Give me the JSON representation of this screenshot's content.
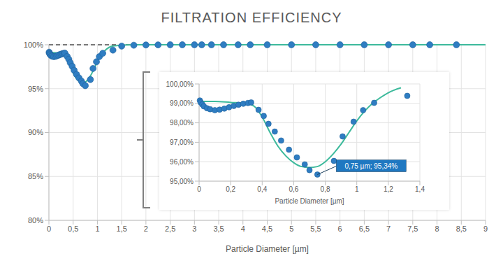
{
  "chart_data": [
    {
      "type": "scatter",
      "title": "FILTRATION EFFICIENCY",
      "x_label": "Particle Diameter [µm]",
      "xlim": [
        0,
        9
      ],
      "xticks": [
        0,
        {
          "value": 0.5,
          "label": "0,5"
        },
        1,
        {
          "value": 1.5,
          "label": "1,5"
        },
        2,
        {
          "value": 2.5,
          "label": "2,5"
        },
        3,
        {
          "value": 3.5,
          "label": "3,5"
        },
        4,
        {
          "value": 4.5,
          "label": "4,5"
        },
        5,
        {
          "value": 5.5,
          "label": "5,5"
        },
        6,
        {
          "value": 6.5,
          "label": "6,5"
        },
        7,
        {
          "value": 7.5,
          "label": "7,5"
        },
        8,
        {
          "value": 8.5,
          "label": "8,5"
        },
        9
      ],
      "ylim": [
        80,
        100
      ],
      "yticks": [
        {
          "value": 80,
          "label": "80%"
        },
        {
          "value": 85,
          "label": "85%"
        },
        {
          "value": 90,
          "label": "90%"
        },
        {
          "value": 95,
          "label": "95%"
        },
        {
          "value": 100,
          "label": "100%"
        }
      ],
      "grid": true,
      "reference_line": {
        "y": 100,
        "color": "#000000",
        "line_style": "dashed"
      },
      "series": [
        {
          "type": "line",
          "color": "#3dba9c",
          "line_style": "solid",
          "x": [
            0,
            0.1,
            0.2,
            0.3,
            0.35,
            0.4,
            0.45,
            0.5,
            0.55,
            0.6,
            0.65,
            0.7,
            0.75,
            0.8,
            0.85,
            0.9,
            0.95,
            1.0,
            1.05,
            1.1,
            1.15,
            1.2,
            1.28,
            1.35,
            1.5,
            1.75,
            2,
            9
          ],
          "values": [
            99.1,
            99.1,
            99.05,
            99.0,
            98.85,
            98.3,
            97.5,
            96.8,
            96.3,
            95.95,
            95.75,
            95.7,
            95.75,
            96.0,
            96.4,
            96.9,
            97.5,
            98.1,
            98.6,
            99.0,
            99.3,
            99.55,
            99.8,
            99.87,
            99.97,
            100,
            100,
            100
          ]
        },
        {
          "type": "scatter",
          "color": "#2f7dc2",
          "marker": "circle",
          "x": [
            0.005,
            0.01,
            0.02,
            0.03,
            0.05,
            0.07,
            0.1,
            0.13,
            0.16,
            0.19,
            0.22,
            0.25,
            0.28,
            0.31,
            0.33,
            0.377,
            0.41,
            0.44,
            0.48,
            0.52,
            0.57,
            0.62,
            0.67,
            0.7,
            0.75,
            0.855,
            0.91,
            0.98,
            1.04,
            1.11,
            1.32,
            1.5,
            1.75,
            2,
            2.25,
            2.5,
            2.75,
            3,
            3.15,
            3.35,
            3.6,
            3.9,
            4.15,
            4.5,
            5,
            5.5,
            6,
            6.5,
            7,
            7.5,
            7.85,
            8.4
          ],
          "values": [
            99.15,
            99.05,
            98.95,
            98.85,
            98.75,
            98.7,
            98.65,
            98.68,
            98.73,
            98.8,
            98.87,
            98.93,
            98.98,
            99.02,
            99.05,
            98.67,
            98.35,
            97.95,
            97.55,
            97.09,
            96.62,
            96.22,
            95.86,
            95.57,
            95.34,
            96.04,
            97.3,
            98.06,
            98.65,
            99.03,
            99.39,
            99.85,
            99.95,
            99.98,
            99.99,
            100,
            100,
            100,
            100,
            100,
            100,
            100,
            100,
            100,
            100,
            100,
            100,
            100,
            100,
            100,
            100,
            100
          ]
        }
      ]
    },
    {
      "type": "scatter",
      "x_label": "Particle Diameter [µm]",
      "xlim": [
        0,
        1.4
      ],
      "xticks": [
        0,
        {
          "value": 0.2,
          "label": "0,2"
        },
        {
          "value": 0.4,
          "label": "0,4"
        },
        {
          "value": 0.6,
          "label": "0,6"
        },
        {
          "value": 0.8,
          "label": "0,8"
        },
        1,
        {
          "value": 1.2,
          "label": "1,2"
        },
        {
          "value": 1.4,
          "label": "1,4"
        }
      ],
      "ylim": [
        95,
        100
      ],
      "yticks": [
        {
          "value": 95,
          "label": "95,00%"
        },
        {
          "value": 96,
          "label": "96,00%"
        },
        {
          "value": 97,
          "label": "97,00%"
        },
        {
          "value": 98,
          "label": "98,00%"
        },
        {
          "value": 99,
          "label": "99,00%"
        },
        {
          "value": 100,
          "label": "100,00%"
        }
      ],
      "grid": true,
      "annotations": [
        {
          "text": "0,75 µm; 95,34%",
          "x": 0.75,
          "y": 95.34,
          "color": "#1f78c1"
        }
      ],
      "series": [
        {
          "type": "line",
          "color": "#3dba9c",
          "line_style": "solid",
          "x": [
            0,
            0.1,
            0.2,
            0.3,
            0.35,
            0.4,
            0.45,
            0.5,
            0.55,
            0.6,
            0.65,
            0.7,
            0.75,
            0.8,
            0.85,
            0.9,
            0.95,
            1.0,
            1.05,
            1.1,
            1.15,
            1.2,
            1.28
          ],
          "values": [
            99.1,
            99.1,
            99.05,
            99.0,
            98.85,
            98.3,
            97.5,
            96.8,
            96.3,
            95.95,
            95.75,
            95.7,
            95.75,
            96.0,
            96.4,
            96.9,
            97.5,
            98.1,
            98.6,
            99.0,
            99.3,
            99.55,
            99.8
          ]
        },
        {
          "type": "scatter",
          "color": "#2f7dc2",
          "marker": "circle",
          "x": [
            0.005,
            0.01,
            0.02,
            0.03,
            0.05,
            0.07,
            0.1,
            0.13,
            0.16,
            0.19,
            0.22,
            0.25,
            0.28,
            0.31,
            0.33,
            0.377,
            0.41,
            0.44,
            0.48,
            0.52,
            0.57,
            0.62,
            0.67,
            0.7,
            0.75,
            0.855,
            0.91,
            0.98,
            1.04,
            1.11,
            1.32
          ],
          "values": [
            99.15,
            99.05,
            98.95,
            98.85,
            98.75,
            98.7,
            98.65,
            98.68,
            98.73,
            98.8,
            98.87,
            98.93,
            98.98,
            99.02,
            99.05,
            98.67,
            98.35,
            97.95,
            97.55,
            97.09,
            96.62,
            96.22,
            95.86,
            95.57,
            95.34,
            96.04,
            97.3,
            98.06,
            98.65,
            99.03,
            99.39
          ]
        }
      ]
    }
  ]
}
